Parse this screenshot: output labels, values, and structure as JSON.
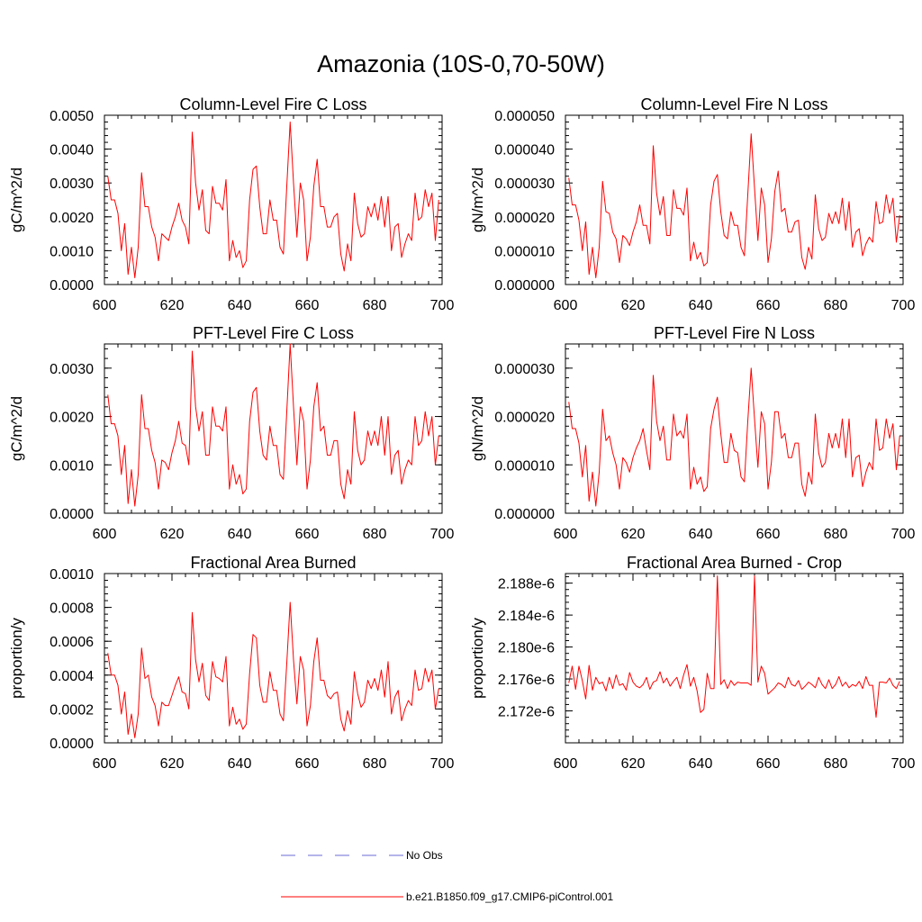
{
  "figure_title": "Amazonia (10S-0,70-50W)",
  "colors": {
    "model": "#ff0000",
    "obs": "#6b6bd6",
    "axis": "#000000"
  },
  "legend": {
    "obs_label": "No Obs",
    "model_label": "b.e21.B1850.f09_g17.CMIP6-piControl.001"
  },
  "chart_data": [
    {
      "type": "line",
      "title": "Column-Level Fire C Loss",
      "ylabel": "gC/m^2/d",
      "xlim": [
        600,
        700
      ],
      "ylim": [
        0,
        0.005
      ],
      "xticks": [
        "600",
        "620",
        "640",
        "660",
        "680",
        "700"
      ],
      "yticks": [
        0,
        0.001,
        0.002,
        0.003,
        0.004,
        0.005
      ],
      "ytick_labels": [
        "0.0000",
        "0.0010",
        "0.0020",
        "0.0030",
        "0.0040",
        "0.0050"
      ],
      "series": [
        {
          "name": "b.e21.B1850.f09_g17.CMIP6-piControl.001",
          "x_start": 601,
          "values": [
            0.0032,
            0.0025,
            0.0025,
            0.0021,
            0.001,
            0.0018,
            0.0003,
            0.0011,
            0.0002,
            0.0011,
            0.0033,
            0.0023,
            0.0023,
            0.0017,
            0.0014,
            0.0007,
            0.0015,
            0.0014,
            0.0013,
            0.0017,
            0.002,
            0.0024,
            0.0019,
            0.0017,
            0.0012,
            0.0045,
            0.003,
            0.0022,
            0.0028,
            0.0016,
            0.0015,
            0.0029,
            0.0024,
            0.0024,
            0.0022,
            0.0031,
            0.0007,
            0.0013,
            0.0008,
            0.001,
            0.0005,
            0.0007,
            0.0025,
            0.0034,
            0.0035,
            0.0023,
            0.0015,
            0.0015,
            0.0025,
            0.0019,
            0.0019,
            0.0011,
            0.0009,
            0.0029,
            0.0048,
            0.003,
            0.0014,
            0.003,
            0.0025,
            0.0007,
            0.0014,
            0.0029,
            0.0037,
            0.0023,
            0.0023,
            0.0017,
            0.0017,
            0.002,
            0.0021,
            0.0009,
            0.0004,
            0.0012,
            0.0007,
            0.0027,
            0.0018,
            0.0014,
            0.0015,
            0.0023,
            0.002,
            0.0024,
            0.0019,
            0.0026,
            0.0017,
            0.0026,
            0.001,
            0.0017,
            0.0018,
            0.0008,
            0.0012,
            0.0015,
            0.0013,
            0.0027,
            0.0019,
            0.002,
            0.0028,
            0.0023,
            0.0027,
            0.0013,
            0.0025
          ]
        }
      ]
    },
    {
      "type": "line",
      "title": "Column-Level Fire N Loss",
      "ylabel": "gN/m^2/d",
      "xlim": [
        600,
        700
      ],
      "ylim": [
        0,
        5e-05
      ],
      "xticks": [
        "600",
        "620",
        "640",
        "660",
        "680",
        "700"
      ],
      "yticks": [
        0,
        1e-05,
        2e-05,
        3e-05,
        4e-05,
        5e-05
      ],
      "ytick_labels": [
        "0.000000",
        "0.000010",
        "0.000020",
        "0.000030",
        "0.000040",
        "0.000050"
      ],
      "series": [
        {
          "name": "b.e21.B1850.f09_g17.CMIP6-piControl.001",
          "x_start": 601,
          "values": [
            3.15e-05,
            2.35e-05,
            2.35e-05,
            1.9e-05,
            1e-05,
            1.85e-05,
            3e-06,
            1.1e-05,
            2e-06,
            1.1e-05,
            3.05e-05,
            2.15e-05,
            2.1e-05,
            1.55e-05,
            1.35e-05,
            6.5e-06,
            1.45e-05,
            1.35e-05,
            1.15e-05,
            1.55e-05,
            1.85e-05,
            2.35e-05,
            1.75e-05,
            1.75e-05,
            1.2e-05,
            4.1e-05,
            2.7e-05,
            2.05e-05,
            2.6e-05,
            1.45e-05,
            1.45e-05,
            2.8e-05,
            2.25e-05,
            2.25e-05,
            2.05e-05,
            2.85e-05,
            7e-06,
            1.25e-05,
            7.5e-06,
            9.5e-06,
            5.5e-06,
            6.5e-06,
            2.35e-05,
            3.05e-05,
            3.25e-05,
            2.15e-05,
            1.45e-05,
            1.35e-05,
            2.15e-05,
            1.75e-05,
            1.75e-05,
            1.1e-05,
            8.5e-06,
            2.65e-05,
            4.45e-05,
            2.85e-05,
            1.3e-05,
            2.85e-05,
            2.35e-05,
            6.5e-06,
            1.35e-05,
            2.75e-05,
            3.35e-05,
            2.15e-05,
            2.25e-05,
            1.55e-05,
            1.55e-05,
            1.85e-05,
            1.9e-05,
            8e-06,
            4.5e-06,
            1.1e-05,
            7.5e-06,
            2.65e-05,
            1.65e-05,
            1.3e-05,
            1.4e-05,
            2.1e-05,
            1.8e-05,
            2.15e-05,
            1.8e-05,
            2.55e-05,
            1.6e-05,
            2.45e-05,
            1.1e-05,
            1.55e-05,
            1.65e-05,
            8.5e-06,
            1.2e-05,
            1.4e-05,
            1.25e-05,
            2.45e-05,
            1.8e-05,
            1.85e-05,
            2.65e-05,
            2.1e-05,
            2.55e-05,
            1.25e-05,
            2.05e-05
          ]
        }
      ]
    },
    {
      "type": "line",
      "title": "PFT-Level Fire C Loss",
      "ylabel": "gC/m^2/d",
      "xlim": [
        600,
        700
      ],
      "ylim": [
        0,
        0.0035
      ],
      "xticks": [
        "600",
        "620",
        "640",
        "660",
        "680",
        "700"
      ],
      "yticks": [
        0,
        0.001,
        0.002,
        0.003
      ],
      "ytick_labels": [
        "0.0000",
        "0.0010",
        "0.0020",
        "0.0030"
      ],
      "series": [
        {
          "name": "b.e21.B1850.f09_g17.CMIP6-piControl.001",
          "x_start": 601,
          "values": [
            0.00245,
            0.00185,
            0.00185,
            0.0016,
            0.0008,
            0.0014,
            0.0002,
            0.0009,
            0.00015,
            0.0008,
            0.00245,
            0.00175,
            0.00175,
            0.0013,
            0.00105,
            0.0005,
            0.0011,
            0.00105,
            0.0009,
            0.00125,
            0.0015,
            0.0019,
            0.00145,
            0.0014,
            0.001,
            0.00335,
            0.0022,
            0.0017,
            0.0021,
            0.0012,
            0.0012,
            0.0022,
            0.0018,
            0.0018,
            0.0017,
            0.0022,
            0.0005,
            0.001,
            0.0006,
            0.0008,
            0.0004,
            0.0005,
            0.0019,
            0.0025,
            0.0026,
            0.0017,
            0.0012,
            0.0011,
            0.0018,
            0.0014,
            0.0014,
            0.0008,
            0.0007,
            0.0021,
            0.0035,
            0.0022,
            0.001,
            0.0022,
            0.0019,
            0.0005,
            0.0011,
            0.0022,
            0.0027,
            0.0017,
            0.0018,
            0.0012,
            0.0012,
            0.0015,
            0.0015,
            0.0006,
            0.0003,
            0.0009,
            0.0006,
            0.0021,
            0.0013,
            0.001,
            0.0011,
            0.0017,
            0.0014,
            0.0017,
            0.0014,
            0.002,
            0.0012,
            0.002,
            0.0008,
            0.0012,
            0.0013,
            0.0006,
            0.0009,
            0.0011,
            0.001,
            0.002,
            0.0014,
            0.0015,
            0.0021,
            0.0016,
            0.002,
            0.001,
            0.0016
          ]
        }
      ]
    },
    {
      "type": "line",
      "title": "PFT-Level Fire N Loss",
      "ylabel": "gN/m^2/d",
      "xlim": [
        600,
        700
      ],
      "ylim": [
        0,
        3.5e-05
      ],
      "xticks": [
        "600",
        "620",
        "640",
        "660",
        "680",
        "700"
      ],
      "yticks": [
        0,
        1e-05,
        2e-05,
        3e-05
      ],
      "ytick_labels": [
        "0.000000",
        "0.000010",
        "0.000020",
        "0.000030"
      ],
      "series": [
        {
          "name": "b.e21.B1850.f09_g17.CMIP6-piControl.001",
          "x_start": 601,
          "values": [
            2.3e-05,
            1.75e-05,
            1.75e-05,
            1.45e-05,
            7.5e-06,
            1.4e-05,
            2.5e-06,
            8.5e-06,
            1.5e-06,
            8.5e-06,
            2.15e-05,
            1.5e-05,
            1.6e-05,
            1.25e-05,
            1e-05,
            5e-06,
            1.15e-05,
            1.05e-05,
            8.5e-06,
            1.15e-05,
            1.35e-05,
            1.5e-05,
            1.75e-05,
            1.3e-05,
            9e-06,
            2.85e-05,
            1.9e-05,
            1.5e-05,
            1.8e-05,
            1.1e-05,
            1.1e-05,
            2.05e-05,
            1.6e-05,
            1.7e-05,
            1.55e-05,
            2.05e-05,
            5e-06,
            9.5e-06,
            6e-06,
            7.5e-06,
            4.5e-06,
            5.5e-06,
            1.75e-05,
            2.15e-05,
            2.4e-05,
            1.65e-05,
            1.05e-05,
            1.05e-05,
            1.65e-05,
            1.3e-05,
            1.25e-05,
            7.5e-06,
            6.5e-06,
            1.9e-05,
            3e-05,
            1.95e-05,
            9.5e-06,
            2.1e-05,
            1.85e-05,
            5e-06,
            1.05e-05,
            2.1e-05,
            2.1e-05,
            1.55e-05,
            1.65e-05,
            1.15e-05,
            1.15e-05,
            1.45e-05,
            1.45e-05,
            6e-06,
            3.5e-06,
            8.5e-06,
            6e-06,
            2.05e-05,
            1.25e-05,
            9.5e-06,
            1.05e-05,
            1.65e-05,
            1.35e-05,
            1.65e-05,
            1.35e-05,
            1.95e-05,
            1.15e-05,
            1.95e-05,
            7.5e-06,
            1.15e-05,
            1.2e-05,
            5.5e-06,
            8.5e-06,
            1.05e-05,
            9e-06,
            1.95e-05,
            1.3e-05,
            1.35e-05,
            1.95e-05,
            1.55e-05,
            1.85e-05,
            9e-06,
            1.6e-05
          ]
        }
      ]
    },
    {
      "type": "line",
      "title": "Fractional Area Burned",
      "ylabel": "proportion/y",
      "xlim": [
        600,
        700
      ],
      "ylim": [
        0,
        0.001
      ],
      "xticks": [
        "600",
        "620",
        "640",
        "660",
        "680",
        "700"
      ],
      "yticks": [
        0,
        0.0002,
        0.0004,
        0.0006,
        0.0008,
        0.001
      ],
      "ytick_labels": [
        "0.0000",
        "0.0002",
        "0.0004",
        "0.0006",
        "0.0008",
        "0.0010"
      ],
      "series": [
        {
          "name": "b.e21.B1850.f09_g17.CMIP6-piControl.001",
          "x_start": 601,
          "values": [
            0.00053,
            0.0004,
            0.0004,
            0.00034,
            0.00017,
            0.0003,
            5e-05,
            0.00017,
            3e-05,
            0.00017,
            0.00056,
            0.00038,
            0.0004,
            0.00027,
            0.00022,
            0.0001,
            0.00024,
            0.00022,
            0.00022,
            0.00028,
            0.00034,
            0.00039,
            0.0003,
            0.00029,
            0.0002,
            0.00077,
            0.00049,
            0.00036,
            0.00047,
            0.00028,
            0.00025,
            0.00048,
            0.00039,
            0.00038,
            0.00036,
            0.00051,
            0.0001,
            0.00021,
            0.00011,
            0.00014,
            8e-05,
            0.00011,
            0.00041,
            0.00064,
            0.00062,
            0.00034,
            0.00024,
            0.00024,
            0.00042,
            0.00031,
            0.00031,
            0.00017,
            0.00013,
            0.00047,
            0.00083,
            0.00049,
            0.00023,
            0.00051,
            0.00043,
            0.0001,
            0.00022,
            0.00048,
            0.00062,
            0.00037,
            0.00037,
            0.00028,
            0.00026,
            0.00029,
            0.0003,
            0.00014,
            7e-05,
            0.00019,
            0.00011,
            0.00042,
            0.00029,
            0.00021,
            0.00024,
            0.00037,
            0.00032,
            0.00038,
            0.00031,
            0.00043,
            0.00027,
            0.00048,
            0.00017,
            0.00027,
            0.00031,
            0.00013,
            0.0002,
            0.00025,
            0.00022,
            0.00043,
            0.00031,
            0.00032,
            0.00044,
            0.00036,
            0.00043,
            0.0002,
            0.00032
          ]
        }
      ]
    },
    {
      "type": "line",
      "title": "Fractional Area Burned - Crop",
      "ylabel": "proportion/y",
      "xlim": [
        600,
        700
      ],
      "ylim": [
        2.168e-06,
        2.1892e-06
      ],
      "xticks": [
        "600",
        "620",
        "640",
        "660",
        "680",
        "700"
      ],
      "yticks": [
        2.172e-06,
        2.176e-06,
        2.18e-06,
        2.184e-06,
        2.188e-06
      ],
      "ytick_labels": [
        "2.172e-6",
        "2.176e-6",
        "2.180e-6",
        "2.184e-6",
        "2.188e-6"
      ],
      "series": [
        {
          "name": "b.e21.B1850.f09_g17.CMIP6-piControl.001",
          "x_start": 601,
          "values": [
            2.1755e-06,
            2.1776e-06,
            2.1747e-06,
            2.1776e-06,
            2.1758e-06,
            2.1735e-06,
            2.1777e-06,
            2.1746e-06,
            2.1762e-06,
            2.1754e-06,
            2.1756e-06,
            2.1745e-06,
            2.1762e-06,
            2.1748e-06,
            2.1765e-06,
            2.1752e-06,
            2.1754e-06,
            2.1746e-06,
            2.1768e-06,
            2.1756e-06,
            2.1751e-06,
            2.1749e-06,
            2.1753e-06,
            2.1762e-06,
            2.1747e-06,
            2.1756e-06,
            2.1758e-06,
            2.1769e-06,
            2.1755e-06,
            2.1761e-06,
            2.1751e-06,
            2.1757e-06,
            2.1762e-06,
            2.1748e-06,
            2.1765e-06,
            2.1778e-06,
            2.1751e-06,
            2.1762e-06,
            2.1745e-06,
            2.1718e-06,
            2.1722e-06,
            2.1767e-06,
            2.1748e-06,
            2.1748e-06,
            2.1889e-06,
            2.1753e-06,
            2.1759e-06,
            2.1748e-06,
            2.1758e-06,
            2.1752e-06,
            2.1756e-06,
            2.1755e-06,
            2.1755e-06,
            2.1755e-06,
            2.1752e-06,
            2.1889e-06,
            2.1756e-06,
            2.1776e-06,
            2.1767e-06,
            2.1741e-06,
            2.1745e-06,
            2.1749e-06,
            2.1755e-06,
            2.1753e-06,
            2.1749e-06,
            2.1762e-06,
            2.1753e-06,
            2.1751e-06,
            2.1758e-06,
            2.1747e-06,
            2.1751e-06,
            2.1756e-06,
            2.1753e-06,
            2.1749e-06,
            2.1762e-06,
            2.1753e-06,
            2.1748e-06,
            2.1759e-06,
            2.1748e-06,
            2.1753e-06,
            2.1763e-06,
            2.1751e-06,
            2.1756e-06,
            2.1749e-06,
            2.1753e-06,
            2.1751e-06,
            2.1757e-06,
            2.1748e-06,
            2.1763e-06,
            2.1752e-06,
            2.1752e-06,
            2.1712e-06,
            2.1756e-06,
            2.1756e-06,
            2.1755e-06,
            2.1761e-06,
            2.1752e-06,
            2.1748e-06,
            2.1757e-06
          ]
        }
      ]
    }
  ]
}
